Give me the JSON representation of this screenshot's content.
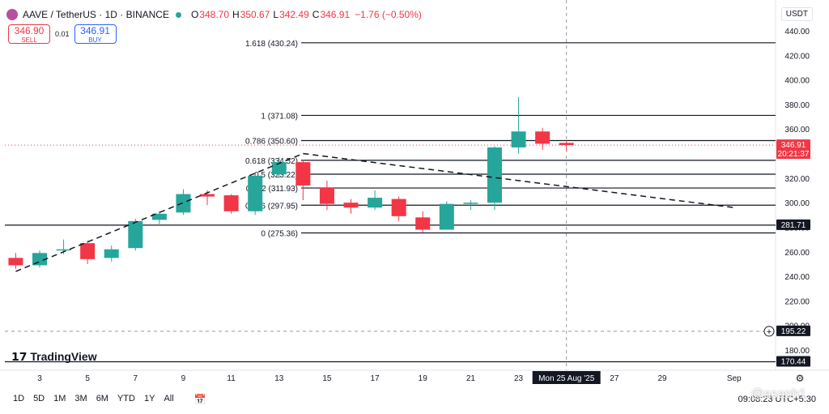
{
  "header": {
    "symbol": "AAVE / TetherUS · 1D · BINANCE",
    "o_label": "O",
    "o_value": "348.70",
    "h_label": "H",
    "h_value": "350.67",
    "l_label": "L",
    "l_value": "342.49",
    "c_label": "C",
    "c_value": "346.91",
    "change": "−1.76 (−0.50%)"
  },
  "trade": {
    "sell_price": "346.90",
    "sell_label": "SELL",
    "spread": "0.01",
    "buy_price": "346.91",
    "buy_label": "BUY"
  },
  "currency": "USDT",
  "logo": "TradingView",
  "crosshair_date": "Mon 25 Aug '25",
  "price_tags": [
    {
      "value": 346.91,
      "label": "346.91",
      "sub": "20:21:37",
      "color": "#f23645"
    },
    {
      "value": 281.71,
      "label": "281.71",
      "color": "#131722"
    },
    {
      "value": 195.22,
      "label": "195.22",
      "color": "#131722"
    },
    {
      "value": 170.44,
      "label": "170.44",
      "color": "#131722"
    }
  ],
  "toolbar": {
    "ranges": [
      "1D",
      "5D",
      "1M",
      "3M",
      "6M",
      "YTD",
      "1Y",
      "All"
    ],
    "timezone": "09:08:23 UTC+5:30"
  },
  "watermark": "@asaph1",
  "colors": {
    "up": "#26a69a",
    "down": "#f23645"
  },
  "chart_data": {
    "type": "candlestick",
    "y_axis_ticks": [
      180,
      200,
      220,
      240,
      260,
      280,
      300,
      320,
      340,
      360,
      380,
      400,
      420,
      440
    ],
    "x_axis_ticks": [
      "3",
      "5",
      "7",
      "9",
      "11",
      "13",
      "15",
      "17",
      "19",
      "21",
      "23",
      "25",
      "27",
      "29",
      "Sep"
    ],
    "ylim": [
      167,
      447
    ],
    "candles": [
      {
        "day": 2,
        "o": 255,
        "h": 259,
        "l": 246,
        "c": 249
      },
      {
        "day": 3,
        "o": 249,
        "h": 261,
        "l": 247,
        "c": 259
      },
      {
        "day": 4,
        "o": 262,
        "h": 270,
        "l": 258,
        "c": 262
      },
      {
        "day": 5,
        "o": 267,
        "h": 269,
        "l": 250,
        "c": 254
      },
      {
        "day": 6,
        "o": 255,
        "h": 265,
        "l": 252,
        "c": 262
      },
      {
        "day": 7,
        "o": 263,
        "h": 287,
        "l": 261,
        "c": 285
      },
      {
        "day": 8,
        "o": 286,
        "h": 293,
        "l": 281,
        "c": 291
      },
      {
        "day": 9,
        "o": 292,
        "h": 311,
        "l": 290,
        "c": 307
      },
      {
        "day": 10,
        "o": 307,
        "h": 310,
        "l": 298,
        "c": 305
      },
      {
        "day": 11,
        "o": 306,
        "h": 307,
        "l": 291,
        "c": 293
      },
      {
        "day": 12,
        "o": 293,
        "h": 323,
        "l": 290,
        "c": 322
      },
      {
        "day": 13,
        "o": 323,
        "h": 337,
        "l": 320,
        "c": 333
      },
      {
        "day": 14,
        "o": 333,
        "h": 335,
        "l": 302,
        "c": 314
      },
      {
        "day": 15,
        "o": 312,
        "h": 318,
        "l": 294,
        "c": 299
      },
      {
        "day": 16,
        "o": 300,
        "h": 303,
        "l": 291,
        "c": 296
      },
      {
        "day": 17,
        "o": 296,
        "h": 310,
        "l": 294,
        "c": 304
      },
      {
        "day": 18,
        "o": 303,
        "h": 305,
        "l": 285,
        "c": 289
      },
      {
        "day": 19,
        "o": 288,
        "h": 293,
        "l": 276,
        "c": 278
      },
      {
        "day": 20,
        "o": 278,
        "h": 301,
        "l": 278,
        "c": 299
      },
      {
        "day": 21,
        "o": 299,
        "h": 302,
        "l": 294,
        "c": 300
      },
      {
        "day": 22,
        "o": 300,
        "h": 346,
        "l": 294,
        "c": 345
      },
      {
        "day": 23,
        "o": 345,
        "h": 386,
        "l": 340,
        "c": 358
      },
      {
        "day": 24,
        "o": 358,
        "h": 361,
        "l": 343,
        "c": 348
      },
      {
        "day": 25,
        "o": 348.7,
        "h": 350.67,
        "l": 342.49,
        "c": 346.91
      }
    ],
    "fib_levels": [
      {
        "ratio": "1.618",
        "price": 430.24,
        "label": "1.618 (430.24)"
      },
      {
        "ratio": "1",
        "price": 371.08,
        "label": "1 (371.08)"
      },
      {
        "ratio": "0.786",
        "price": 350.6,
        "label": "0.786 (350.60)"
      },
      {
        "ratio": "0.618",
        "price": 334.52,
        "label": "0.618 (334.52)"
      },
      {
        "ratio": "0.5",
        "price": 323.22,
        "label": "0.5 (323.22)"
      },
      {
        "ratio": "0.382",
        "price": 311.93,
        "label": "0.382 (311.93)"
      },
      {
        "ratio": "0.236",
        "price": 297.95,
        "label": "0.236 (297.95)"
      },
      {
        "ratio": "0",
        "price": 275.36,
        "label": "0 (275.36)"
      }
    ],
    "trend_lines": [
      {
        "from": {
          "day": 2,
          "price": 244
        },
        "to": {
          "day": 14,
          "price": 340
        }
      },
      {
        "from": {
          "day": 14,
          "price": 340
        },
        "to": {
          "day": 32,
          "price": 296
        }
      }
    ],
    "horizontal_lines": [
      281.71,
      170.44
    ],
    "dashed_horizontal": 195.22,
    "crosshair_day": 25
  }
}
